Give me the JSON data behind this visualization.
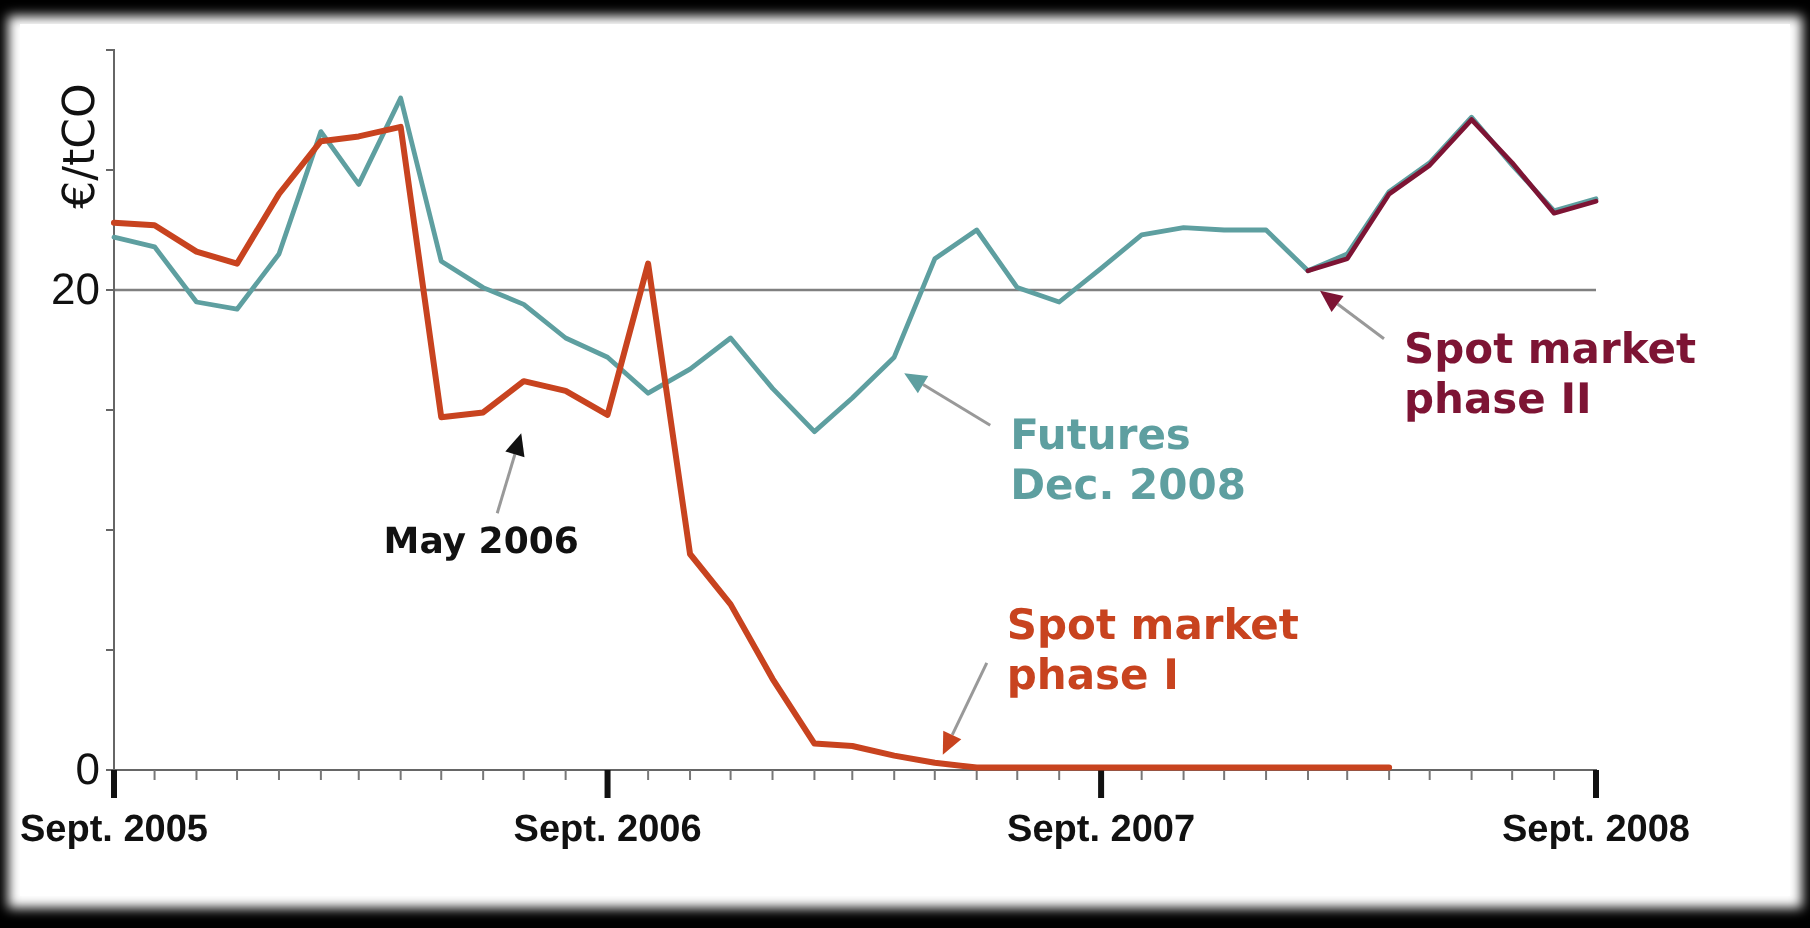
{
  "chart_data": {
    "type": "line",
    "ylabel": "€/tCO",
    "x": [
      "2005-09",
      "2005-10",
      "2005-11",
      "2005-12",
      "2006-01",
      "2006-02",
      "2006-03",
      "2006-04",
      "2006-05",
      "2006-06",
      "2006-07",
      "2006-08",
      "2006-09",
      "2006-10",
      "2006-11",
      "2006-12",
      "2007-01",
      "2007-02",
      "2007-03",
      "2007-04",
      "2007-05",
      "2007-06",
      "2007-07",
      "2007-08",
      "2007-09",
      "2007-10",
      "2007-11",
      "2007-12",
      "2008-01",
      "2008-02",
      "2008-03",
      "2008-04",
      "2008-05",
      "2008-06",
      "2008-07",
      "2008-08",
      "2008-09"
    ],
    "series": [
      {
        "name": "Futures Dec. 2008",
        "color": "#5e9fa0",
        "values": [
          22.2,
          21.8,
          19.5,
          19.2,
          21.5,
          26.6,
          24.4,
          28.0,
          21.2,
          20.1,
          19.4,
          18.0,
          17.2,
          15.7,
          16.7,
          18.0,
          15.9,
          14.1,
          15.5,
          17.2,
          21.3,
          22.5,
          20.1,
          19.5,
          20.9,
          22.3,
          22.6,
          22.5,
          22.5,
          20.8,
          21.5,
          24.1,
          25.3,
          27.2,
          25.2,
          23.3,
          23.8
        ]
      },
      {
        "name": "Spot market phase I",
        "color": "#c8431f",
        "values": [
          22.8,
          22.7,
          21.6,
          21.1,
          24.0,
          26.2,
          26.4,
          26.8,
          14.7,
          14.9,
          16.2,
          15.8,
          14.8,
          21.1,
          9.0,
          6.9,
          3.8,
          1.1,
          1.0,
          0.6,
          0.3,
          0.1,
          0.1,
          0.1,
          0.1,
          0.1,
          0.1,
          0.1,
          0.1,
          0.1,
          0.1,
          0.1,
          null,
          null,
          null,
          null,
          null
        ]
      },
      {
        "name": "Spot market phase II",
        "color": "#7d1434",
        "values": [
          null,
          null,
          null,
          null,
          null,
          null,
          null,
          null,
          null,
          null,
          null,
          null,
          null,
          null,
          null,
          null,
          null,
          null,
          null,
          null,
          null,
          null,
          null,
          null,
          null,
          null,
          null,
          null,
          null,
          20.8,
          21.3,
          24.0,
          25.2,
          27.1,
          25.3,
          23.2,
          23.7
        ]
      }
    ],
    "xlim": [
      "2005-09",
      "2008-09"
    ],
    "xticks": [
      {
        "value": "2005-09",
        "label": "Sept. 2005"
      },
      {
        "value": "2005-10",
        "label": null
      },
      {
        "value": "2005-11",
        "label": null
      },
      {
        "value": "2005-12",
        "label": null
      },
      {
        "value": "2006-01",
        "label": null
      },
      {
        "value": "2006-02",
        "label": null
      },
      {
        "value": "2006-03",
        "label": null
      },
      {
        "value": "2006-04",
        "label": null
      },
      {
        "value": "2006-05",
        "label": null
      },
      {
        "value": "2006-06",
        "label": null
      },
      {
        "value": "2006-07",
        "label": null
      },
      {
        "value": "2006-08",
        "label": null
      },
      {
        "value": "2006-09",
        "label": "Sept. 2006"
      },
      {
        "value": "2006-10",
        "label": null
      },
      {
        "value": "2006-11",
        "label": null
      },
      {
        "value": "2006-12",
        "label": null
      },
      {
        "value": "2007-01",
        "label": null
      },
      {
        "value": "2007-02",
        "label": null
      },
      {
        "value": "2007-03",
        "label": null
      },
      {
        "value": "2007-04",
        "label": null
      },
      {
        "value": "2007-05",
        "label": null
      },
      {
        "value": "2007-06",
        "label": null
      },
      {
        "value": "2007-07",
        "label": null
      },
      {
        "value": "2007-08",
        "label": null
      },
      {
        "value": "2007-09",
        "label": "Sept. 2007"
      },
      {
        "value": "2007-10",
        "label": null
      },
      {
        "value": "2007-11",
        "label": null
      },
      {
        "value": "2007-12",
        "label": null
      },
      {
        "value": "2008-01",
        "label": null
      },
      {
        "value": "2008-02",
        "label": null
      },
      {
        "value": "2008-03",
        "label": null
      },
      {
        "value": "2008-04",
        "label": null
      },
      {
        "value": "2008-05",
        "label": null
      },
      {
        "value": "2008-06",
        "label": null
      },
      {
        "value": "2008-07",
        "label": null
      },
      {
        "value": "2008-08",
        "label": null
      },
      {
        "value": "2008-09",
        "label": "Sept. 2008"
      }
    ],
    "ylim": [
      0,
      30
    ],
    "yticks": [
      0,
      {
        "value": 5,
        "label": null
      },
      {
        "value": 10,
        "label": null
      },
      {
        "value": 15,
        "label": null
      },
      20,
      {
        "value": 25,
        "label": null
      }
    ],
    "ref_lines": [
      {
        "axis": "y",
        "value": 20,
        "color": "#808080"
      }
    ],
    "annotations": [
      {
        "text": "May 2006",
        "x": "2006-05",
        "y": 14.7
      }
    ],
    "legend": false,
    "marker": "none",
    "line_style": "solid"
  }
}
